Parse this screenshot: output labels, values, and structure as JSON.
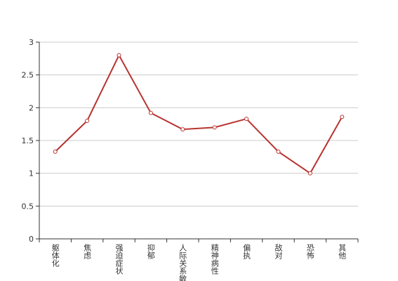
{
  "chart_data": {
    "type": "line",
    "categories": [
      "躯体化",
      "焦虑",
      "强迫症状",
      "抑郁",
      "人际关系敏感",
      "精神病性",
      "偏执",
      "敌对",
      "恐怖",
      "其他"
    ],
    "values": [
      1.33,
      1.8,
      2.8,
      1.92,
      1.67,
      1.7,
      1.83,
      1.33,
      1.0,
      1.86
    ],
    "color": "#b83330",
    "ylim": [
      0,
      3
    ],
    "yticks": [
      0,
      0.5,
      1,
      1.5,
      2,
      2.5,
      3
    ],
    "grid": true
  }
}
